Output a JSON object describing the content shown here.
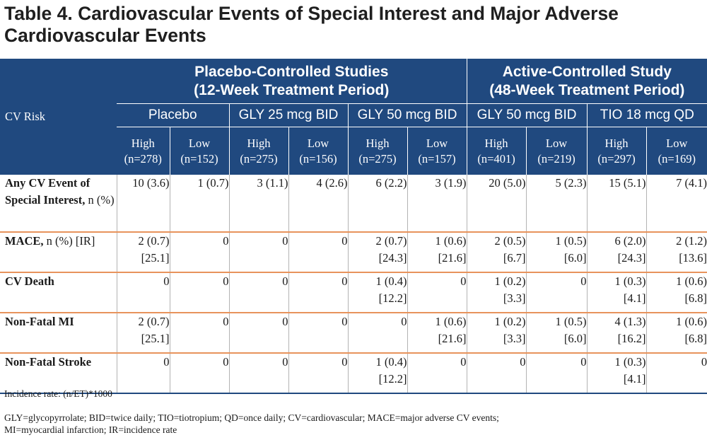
{
  "title": "Table 4. Cardiovascular Events of Special Interest and Major Adverse Cardiovascular Events",
  "header": {
    "cv_risk": "CV Risk",
    "groups": [
      {
        "line1": "Placebo-Controlled Studies",
        "line2": "(12-Week Treatment Period)"
      },
      {
        "line1": "Active-Controlled Study",
        "line2": "(48-Week Treatment Period)"
      }
    ],
    "treatments": [
      "Placebo",
      "GLY 25 mcg BID",
      "GLY 50 mcg BID",
      "GLY 50 mcg BID",
      "TIO 18 mcg QD"
    ],
    "subcols": [
      {
        "risk": "High",
        "n": "(n=278)"
      },
      {
        "risk": "Low",
        "n": "(n=152)"
      },
      {
        "risk": "High",
        "n": "(n=275)"
      },
      {
        "risk": "Low",
        "n": "(n=156)"
      },
      {
        "risk": "High",
        "n": "(n=275)"
      },
      {
        "risk": "Low",
        "n": "(n=157)"
      },
      {
        "risk": "High",
        "n": "(n=401)"
      },
      {
        "risk": "Low",
        "n": "(n=219)"
      },
      {
        "risk": "High",
        "n": "(n=297)"
      },
      {
        "risk": "Low",
        "n": "(n=169)"
      }
    ]
  },
  "rows": [
    {
      "label": "Any CV Event of Special Interest,",
      "label_suffix": "n (%)",
      "cells": [
        [
          "10 (3.6)"
        ],
        [
          "1 (0.7)"
        ],
        [
          "3 (1.1)"
        ],
        [
          "4 (2.6)"
        ],
        [
          "6 (2.2)"
        ],
        [
          "3 (1.9)"
        ],
        [
          "20 (5.0)"
        ],
        [
          "5 (2.3)"
        ],
        [
          "15 (5.1)"
        ],
        [
          "7 (4.1)"
        ]
      ]
    },
    {
      "label": "MACE,",
      "label_suffix": "n (%) [IR]",
      "cells": [
        [
          "2 (0.7)",
          "[25.1]"
        ],
        [
          "0"
        ],
        [
          "0"
        ],
        [
          "0"
        ],
        [
          "2 (0.7)",
          "[24.3]"
        ],
        [
          "1 (0.6)",
          "[21.6]"
        ],
        [
          "2 (0.5)",
          "[6.7]"
        ],
        [
          "1 (0.5)",
          "[6.0]"
        ],
        [
          "6 (2.0)",
          "[24.3]"
        ],
        [
          "2 (1.2)",
          "[13.6]"
        ]
      ]
    },
    {
      "label": "CV Death",
      "label_suffix": "",
      "cells": [
        [
          "0"
        ],
        [
          "0"
        ],
        [
          "0"
        ],
        [
          "0"
        ],
        [
          "1 (0.4)",
          "[12.2]"
        ],
        [
          "0"
        ],
        [
          "1 (0.2)",
          "[3.3]"
        ],
        [
          "0"
        ],
        [
          "1 (0.3)",
          "[4.1]"
        ],
        [
          "1 (0.6)",
          "[6.8]"
        ]
      ]
    },
    {
      "label": "Non-Fatal MI",
      "label_suffix": "",
      "cells": [
        [
          "2 (0.7)",
          "[25.1]"
        ],
        [
          "0"
        ],
        [
          "0"
        ],
        [
          "0"
        ],
        [
          "0"
        ],
        [
          "1 (0.6)",
          "[21.6]"
        ],
        [
          "1 (0.2)",
          "[3.3]"
        ],
        [
          "1 (0.5)",
          "[6.0]"
        ],
        [
          "4 (1.3)",
          "[16.2]"
        ],
        [
          "1 (0.6)",
          "[6.8]"
        ]
      ]
    },
    {
      "label": "Non-Fatal Stroke",
      "label_suffix": "",
      "cells": [
        [
          "0"
        ],
        [
          "0"
        ],
        [
          "0"
        ],
        [
          "0"
        ],
        [
          "1 (0.4)",
          "[12.2]"
        ],
        [
          "0"
        ],
        [
          "0"
        ],
        [
          "0"
        ],
        [
          "1 (0.3)",
          "[4.1]"
        ],
        [
          "0"
        ]
      ]
    }
  ],
  "footnotes": {
    "incidence": "Incidence rate: (n/ET)*1000",
    "abbrev_line1": "GLY=glycopyrrolate; BID=twice daily; TIO=tiotropium; QD=once daily; CV=cardiovascular; MACE=major adverse CV events;",
    "abbrev_line2": "MI=myocardial infarction; IR=incidence rate"
  },
  "colors": {
    "header_bg": "#20497f",
    "row_rule": "#e8935c"
  }
}
